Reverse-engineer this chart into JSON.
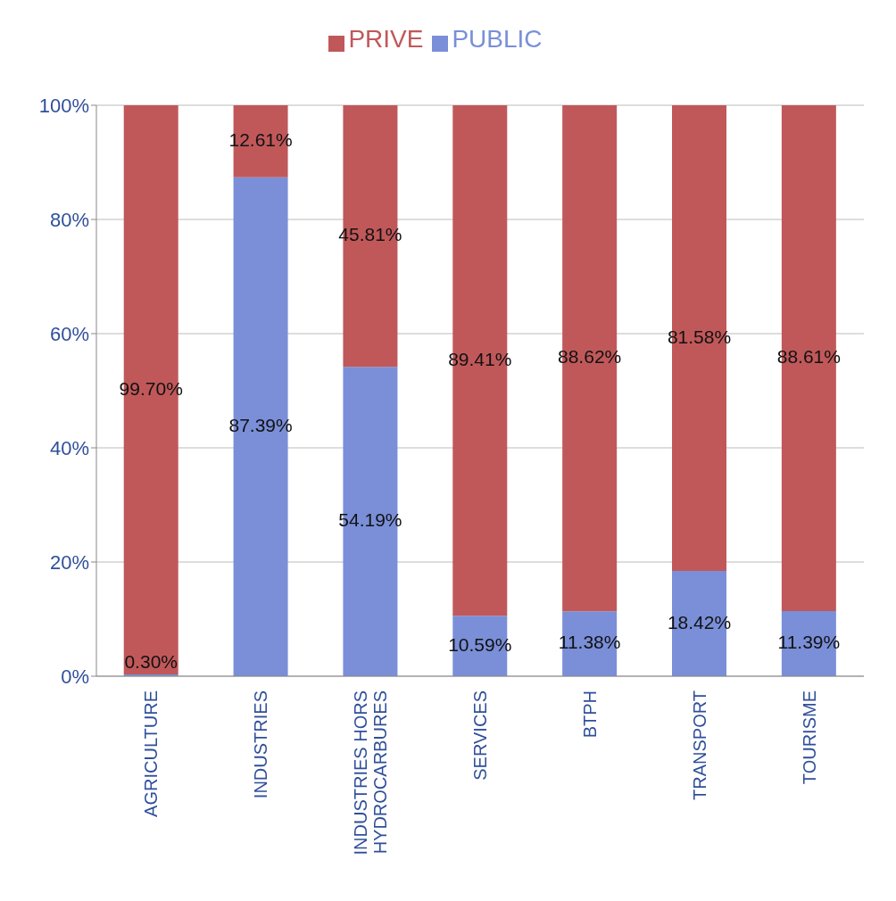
{
  "chart_data": {
    "type": "bar",
    "stacked": true,
    "categories": [
      "AGRICULTURE",
      "INDUSTRIES",
      "INDUSTRIES HORS HYDROCARBURES",
      "SERVICES",
      "BTPH",
      "TRANSPORT",
      "TOURISME"
    ],
    "series": [
      {
        "name": "PUBLIC",
        "color": "#7a8fd8",
        "values": [
          0.3,
          87.39,
          54.19,
          10.59,
          11.38,
          18.42,
          11.39
        ],
        "value_labels": [
          "0.30%",
          "87.39%",
          "54.19%",
          "10.59%",
          "11.38%",
          "18.42%",
          "11.39%"
        ]
      },
      {
        "name": "PRIVE",
        "color": "#c0585a",
        "values": [
          99.7,
          12.61,
          45.81,
          89.41,
          88.62,
          81.58,
          88.61
        ],
        "value_labels": [
          "99.70%",
          "12.61%",
          "45.81%",
          "89.41%",
          "88.62%",
          "81.58%",
          "88.61%"
        ]
      }
    ],
    "ylim": [
      0,
      100
    ],
    "yticks": [
      {
        "value": 0,
        "label": "0%"
      },
      {
        "value": 20,
        "label": "20%"
      },
      {
        "value": 40,
        "label": "40%"
      },
      {
        "value": 60,
        "label": "60%"
      },
      {
        "value": 80,
        "label": "80%"
      },
      {
        "value": 100,
        "label": "100%"
      }
    ],
    "grid": "y",
    "legend": "top"
  }
}
